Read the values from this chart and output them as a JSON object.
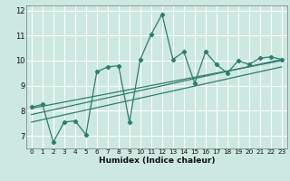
{
  "title": "",
  "xlabel": "Humidex (Indice chaleur)",
  "ylabel": "",
  "bg_color": "#cce8e0",
  "line_color": "#2e7d6e",
  "grid_color": "#ffffff",
  "xlim": [
    -0.5,
    23.5
  ],
  "ylim": [
    6.5,
    12.2
  ],
  "xticks": [
    0,
    1,
    2,
    3,
    4,
    5,
    6,
    7,
    8,
    9,
    10,
    11,
    12,
    13,
    14,
    15,
    16,
    17,
    18,
    19,
    20,
    21,
    22,
    23
  ],
  "yticks": [
    7,
    8,
    9,
    10,
    11,
    12
  ],
  "main_x": [
    0,
    1,
    2,
    3,
    4,
    5,
    6,
    7,
    8,
    9,
    10,
    11,
    12,
    13,
    14,
    15,
    16,
    17,
    18,
    19,
    20,
    21,
    22,
    23
  ],
  "main_y": [
    8.15,
    8.25,
    6.75,
    7.55,
    7.6,
    7.05,
    9.55,
    9.75,
    9.8,
    7.55,
    10.05,
    11.05,
    11.85,
    10.05,
    10.35,
    9.1,
    10.35,
    9.85,
    9.5,
    10.0,
    9.85,
    10.1,
    10.15,
    10.05
  ],
  "trend1_x": [
    0,
    23
  ],
  "trend1_y": [
    7.55,
    9.75
  ],
  "trend2_x": [
    0,
    23
  ],
  "trend2_y": [
    7.85,
    10.05
  ],
  "trend3_x": [
    0,
    23
  ],
  "trend3_y": [
    8.1,
    10.0
  ]
}
